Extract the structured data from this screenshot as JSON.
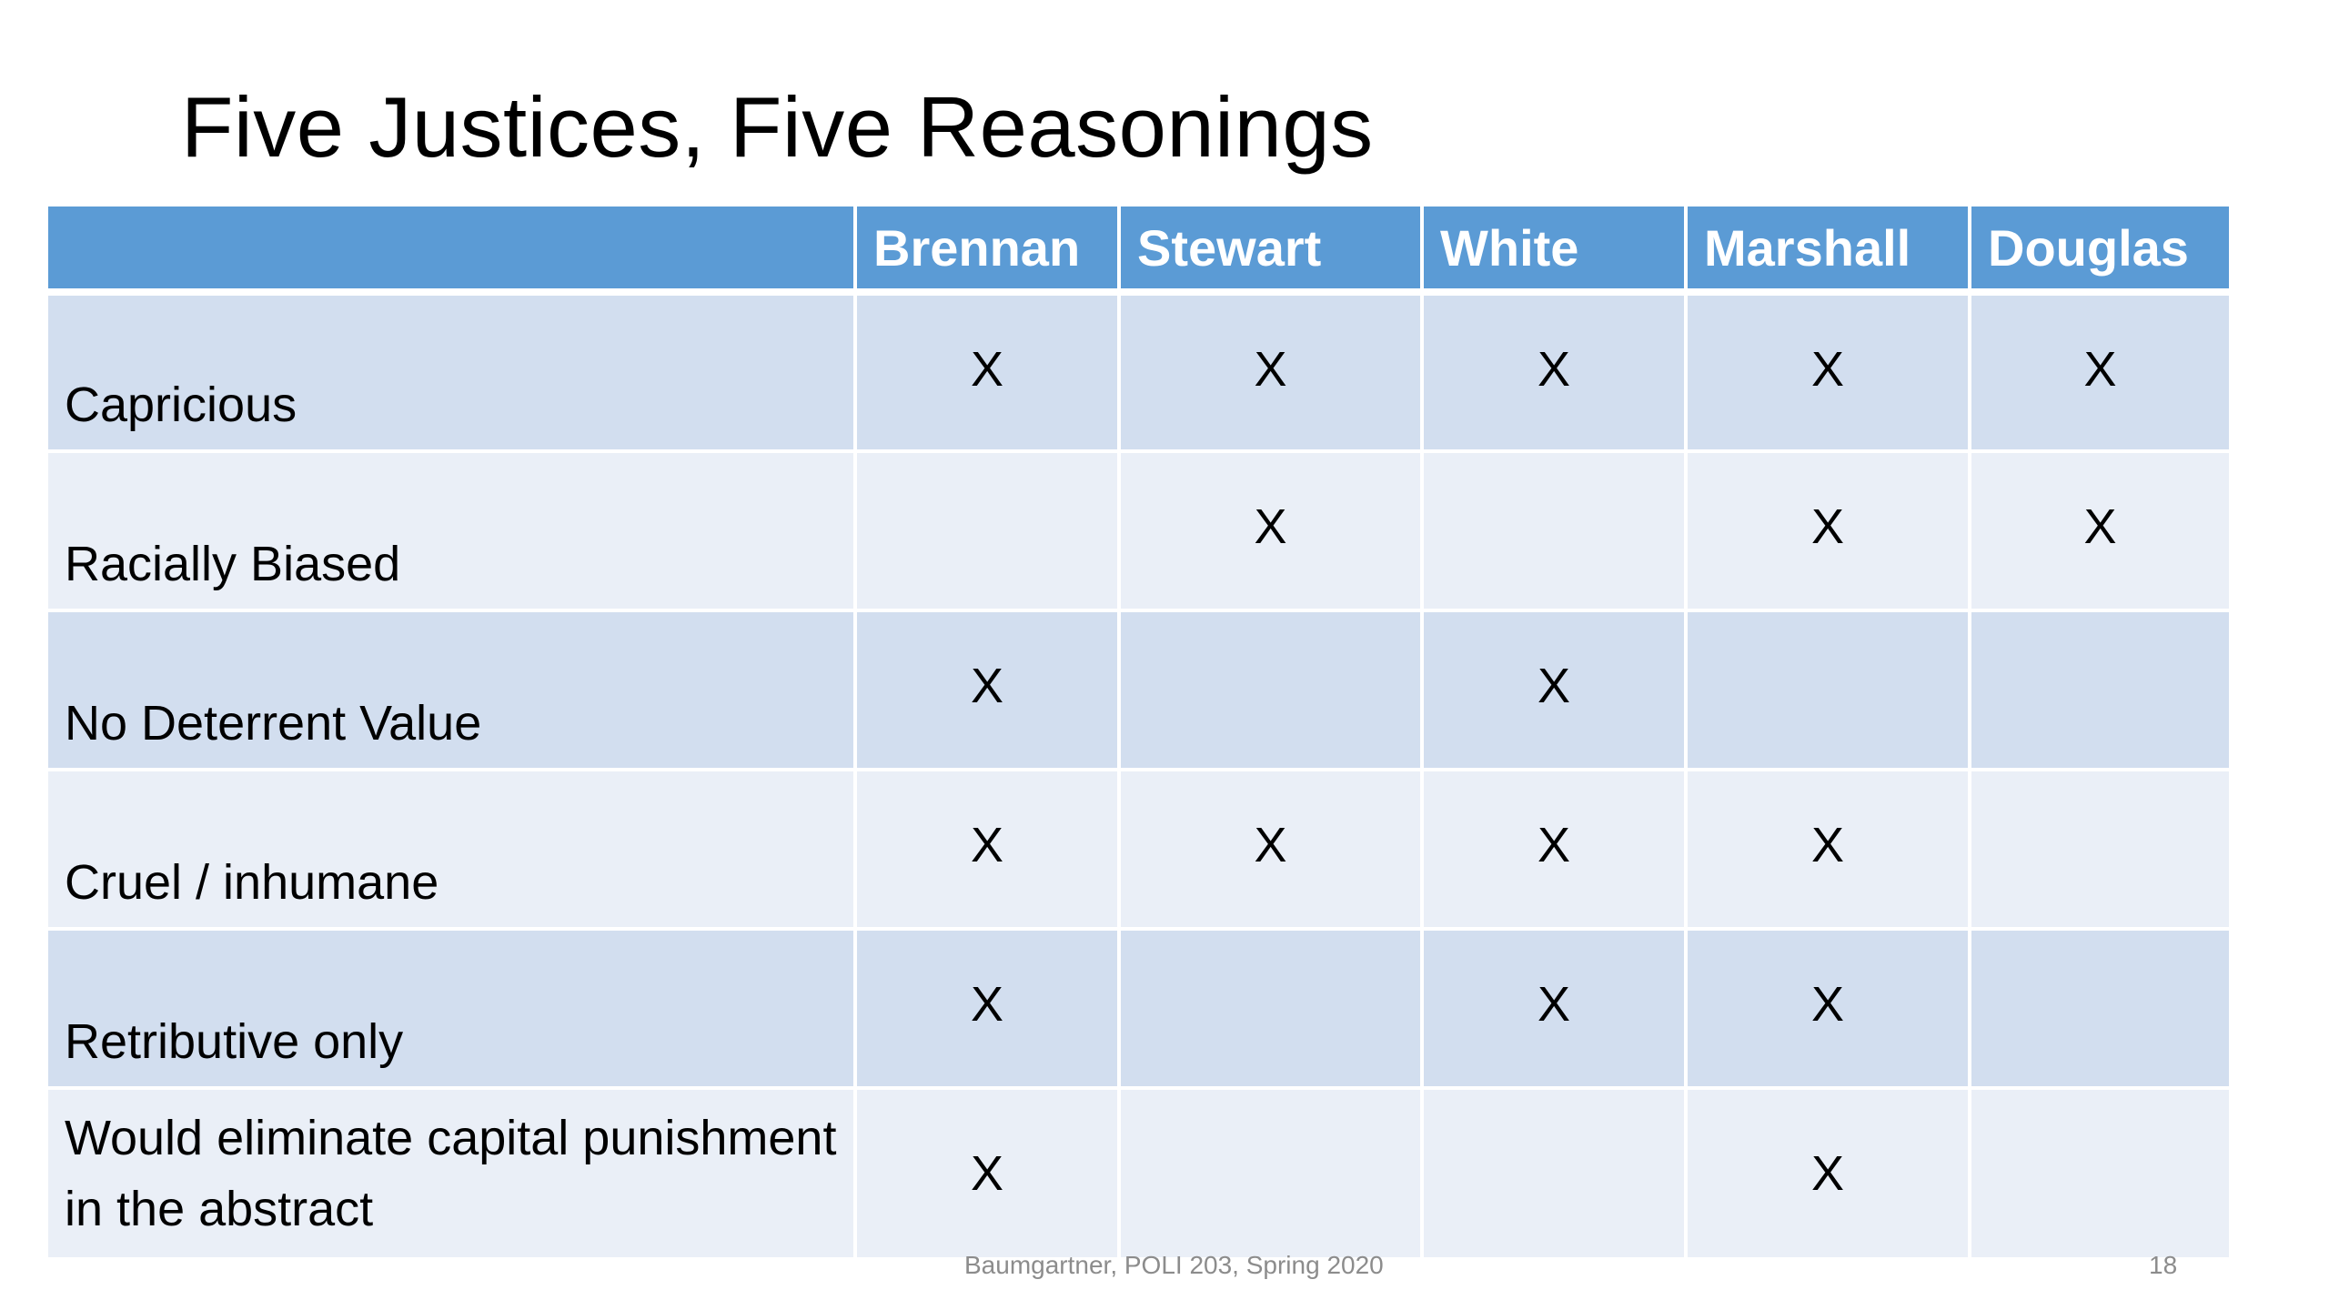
{
  "slide": {
    "title": "Five Justices, Five Reasonings",
    "footer": "Baumgartner, POLI 203, Spring 2020",
    "page_number": "18"
  },
  "table": {
    "corner_header": "",
    "columns": [
      "Brennan",
      "Stewart",
      "White",
      "Marshall",
      "Douglas"
    ],
    "rows": [
      {
        "label": "Capricious",
        "marks": [
          "X",
          "X",
          "X",
          "X",
          "X"
        ]
      },
      {
        "label": "Racially Biased",
        "marks": [
          "",
          "X",
          "",
          "X",
          "X"
        ]
      },
      {
        "label": "No Deterrent Value",
        "marks": [
          "X",
          "",
          "X",
          "",
          ""
        ]
      },
      {
        "label": "Cruel / inhumane",
        "marks": [
          "X",
          "X",
          "X",
          "X",
          ""
        ]
      },
      {
        "label": "Retributive only",
        "marks": [
          "X",
          "",
          "X",
          "X",
          ""
        ]
      },
      {
        "label": "Would eliminate capital punishment in the abstract",
        "marks": [
          "X",
          "",
          "",
          "X",
          ""
        ]
      }
    ]
  },
  "colors": {
    "header_background": "#5b9bd5",
    "row_band_dark": "#d2deef",
    "row_band_light": "#eaeff7",
    "footer_text": "#8c8c8c"
  }
}
